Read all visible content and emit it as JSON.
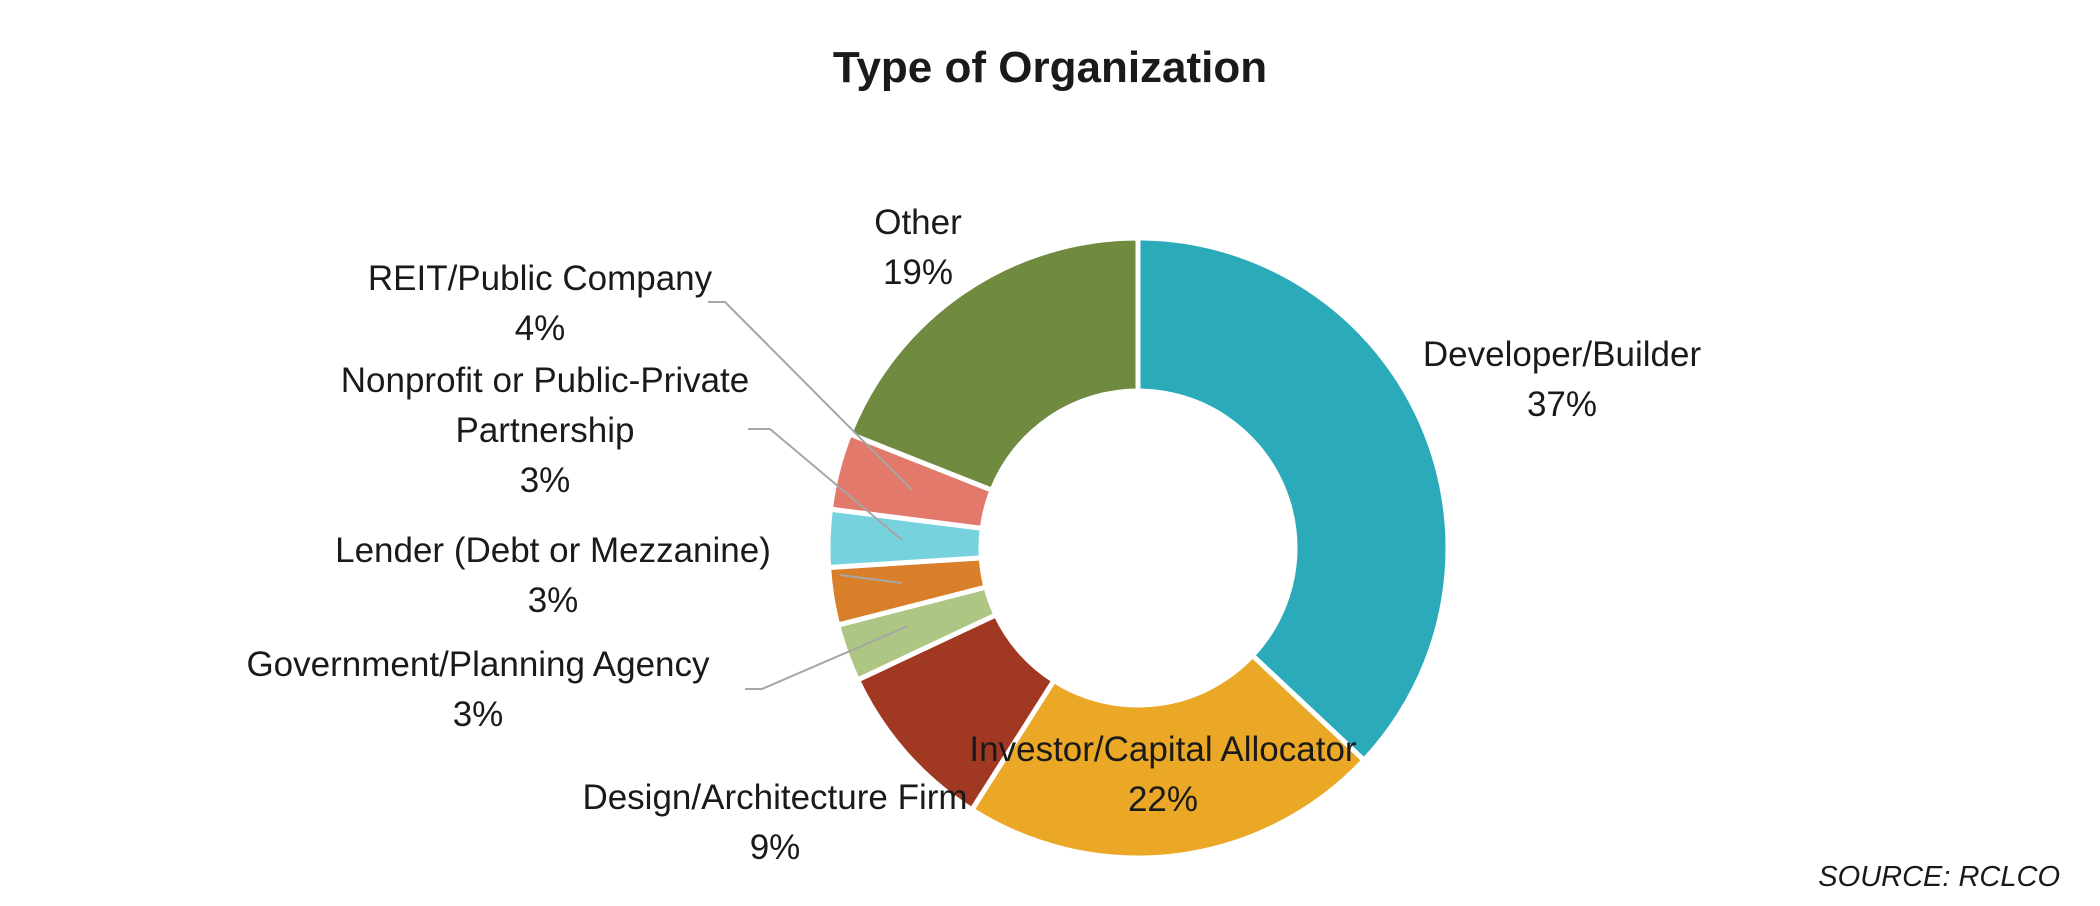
{
  "chart_data": {
    "type": "pie",
    "variant": "donut",
    "title": "Type of Organization",
    "slices": [
      {
        "label": "Developer/Builder",
        "value": 37,
        "value_label": "37%",
        "color": "#2BAAB9"
      },
      {
        "label": "Investor/Capital Allocator",
        "value": 22,
        "value_label": "22%",
        "color": "#EBA826"
      },
      {
        "label": "Design/Architecture Firm",
        "value": 9,
        "value_label": "9%",
        "color": "#A13822"
      },
      {
        "label": "Government/Planning Agency",
        "value": 3,
        "value_label": "3%",
        "color": "#AEC684"
      },
      {
        "label": "Lender (Debt or Mezzanine)",
        "value": 3,
        "value_label": "3%",
        "color": "#D97E29"
      },
      {
        "label": "Nonprofit or Public-Private Partnership",
        "value": 3,
        "value_label": "3%",
        "color": "#76D3DE"
      },
      {
        "label": "REIT/Public Company",
        "value": 4,
        "value_label": "4%",
        "color": "#E2796A"
      },
      {
        "label": "Other",
        "value": 19,
        "value_label": "19%",
        "color": "#708A40"
      }
    ],
    "legend": "none",
    "source": "SOURCE:  RCLCO"
  }
}
